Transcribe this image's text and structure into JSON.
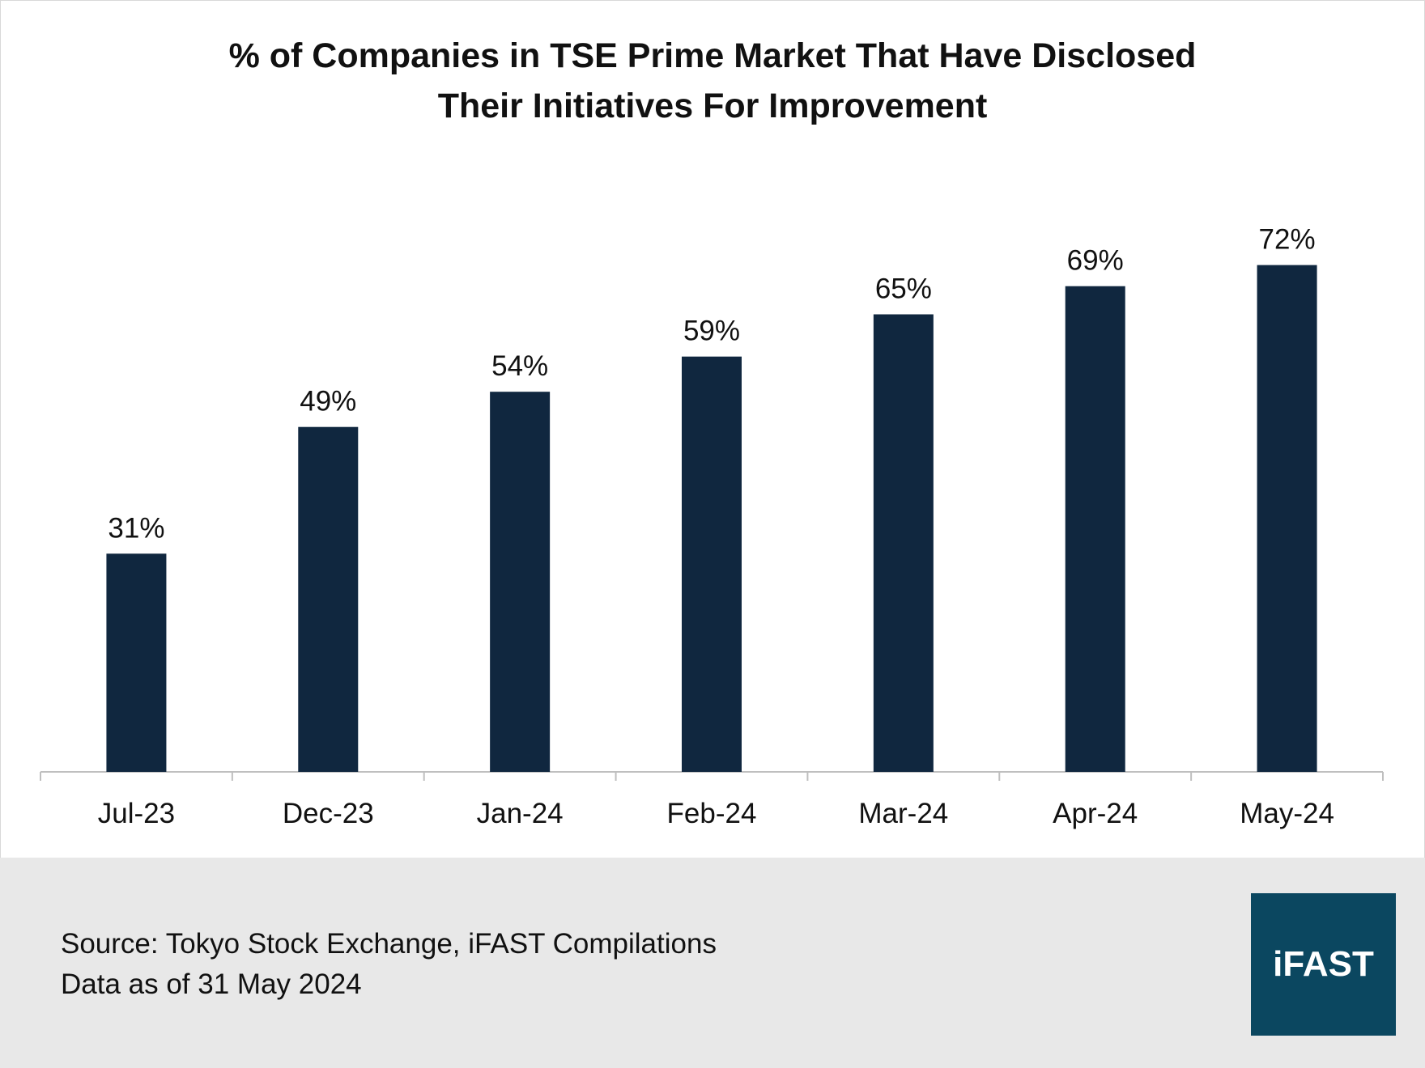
{
  "chart_data": {
    "type": "bar",
    "title": "% of Companies in TSE Prime Market That Have Disclosed Their Initiatives For Improvement",
    "title_lines": [
      "% of Companies in TSE Prime Market That Have Disclosed",
      "Their Initiatives For Improvement"
    ],
    "categories": [
      "Jul-23",
      "Dec-23",
      "Jan-24",
      "Feb-24",
      "Mar-24",
      "Apr-24",
      "May-24"
    ],
    "values": [
      31,
      49,
      54,
      59,
      65,
      69,
      72
    ],
    "data_labels": [
      "31%",
      "49%",
      "54%",
      "59%",
      "65%",
      "69%",
      "72%"
    ],
    "xlabel": "",
    "ylabel": "",
    "ylim": [
      0,
      100
    ],
    "grid": false,
    "bar_color": "#10273f"
  },
  "footer": {
    "source": "Source: Tokyo Stock Exchange, iFAST Compilations",
    "date": "Data as of 31 May 2024",
    "logo_text": "iFAST",
    "logo_color": "#0b4760"
  }
}
